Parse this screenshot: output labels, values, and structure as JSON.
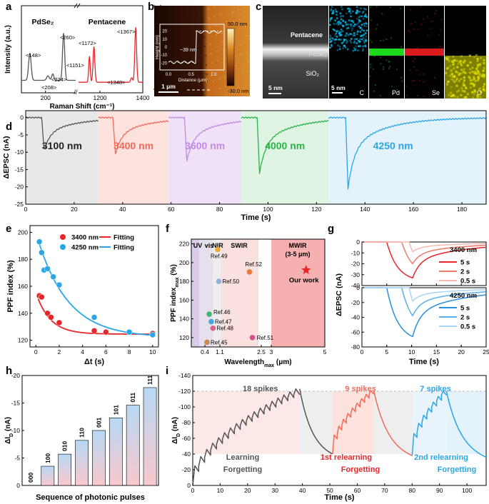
{
  "panels": {
    "a": {
      "letter": "a",
      "ylabel": "Intensity (a.u.)",
      "xlabel": "Raman Shift (cm⁻¹)",
      "xticks": [
        "200",
        "1200",
        "1400"
      ],
      "material_left": "PdSe₂",
      "material_right": "Pentacene",
      "peaks_left": [
        "<148>",
        "<208>",
        "<224>",
        "<260>"
      ],
      "peaks_right": [
        "<1151>",
        "<1172>",
        "<1348>",
        "<1367>"
      ],
      "axis_break": "//",
      "colors": {
        "left": "#555555",
        "right": "#e8262a"
      }
    },
    "b": {
      "letter": "b",
      "scale_bar": "1 μm",
      "colorbar_top": "50.0 nm",
      "colorbar_bottom": "-30.0 nm",
      "inset_ylabel": "Height (nm)",
      "inset_xlabel": "Distance (μm)",
      "inset_yticks": [
        "20",
        "10",
        "0",
        "-10",
        "-20"
      ],
      "inset_xticks": [
        "0.0",
        "0.5",
        "1.0"
      ],
      "inset_annotation": "~39 nm"
    },
    "c": {
      "letter": "c",
      "layer_labels": [
        "Pentacene",
        "PdSe₂",
        "SiO₂"
      ],
      "scale_bar_1": "5 nm",
      "scale_bar_2": "5 nm",
      "elements": [
        {
          "label": "C",
          "color": "#00c8ff"
        },
        {
          "label": "Pd",
          "color": "#22ff22"
        },
        {
          "label": "Se",
          "color": "#ff2020"
        },
        {
          "label": "O",
          "color": "#e6e600"
        }
      ]
    },
    "d": {
      "letter": "d",
      "ylabel": "ΔEPSC (nA)",
      "xlabel": "Time (s)",
      "chart_data": {
        "type": "line",
        "xlim": [
          0,
          190
        ],
        "ylim": [
          -25,
          2
        ],
        "xticks": [
          0,
          20,
          40,
          60,
          80,
          100,
          120,
          140,
          160,
          180
        ],
        "yticks": [
          0,
          -5,
          -10,
          -15,
          -20,
          -25
        ],
        "segments": [
          {
            "label": "3100 nm",
            "x0": 0,
            "x1": 30,
            "t_on": 6.6,
            "peak": -9.5,
            "color": "#555555",
            "bg": "#e8e8e8"
          },
          {
            "label": "3400 nm",
            "x0": 30,
            "x1": 59,
            "t_on": 36,
            "peak": -10.5,
            "color": "#f26a5a",
            "bg": "#fde2dd"
          },
          {
            "label": "3600 nm",
            "x0": 59,
            "x1": 89,
            "t_on": 65.5,
            "peak": -12.5,
            "color": "#c08ae0",
            "bg": "#efe2f8"
          },
          {
            "label": "4000 nm",
            "x0": 89,
            "x1": 125,
            "t_on": 95.5,
            "peak": -16,
            "color": "#2ab34a",
            "bg": "#e0f4e3"
          },
          {
            "label": "4250 nm",
            "x0": 125,
            "x1": 190,
            "t_on": 132,
            "peak": -20.5,
            "color": "#2aa6e8",
            "bg": "#e3f2fb"
          }
        ]
      }
    },
    "e": {
      "letter": "e",
      "ylabel": "PPF index (%)",
      "xlabel": "Δt (s)",
      "legend": [
        {
          "label": "3400 nm",
          "type": "marker",
          "color": "#e8262a"
        },
        {
          "label": "Fitting",
          "type": "line",
          "color": "#e8262a"
        },
        {
          "label": "4250 nm",
          "type": "marker",
          "color": "#2aa6e8"
        },
        {
          "label": "Fitting",
          "type": "line",
          "color": "#2aa6e8"
        }
      ],
      "chart_data": {
        "type": "scatter",
        "xlim": [
          -0.5,
          10.5
        ],
        "ylim": [
          115,
          205
        ],
        "xticks": [
          0,
          2,
          4,
          6,
          8,
          10
        ],
        "yticks": [
          120,
          140,
          160,
          180,
          200
        ],
        "series": [
          {
            "name": "3400 nm",
            "color": "#e8262a",
            "x": [
              0.3,
              0.5,
              1,
              1.3,
              2,
              5,
              6,
              8,
              10
            ],
            "y": [
              153,
              152,
              140,
              137,
              133,
              127,
              126,
              126,
              125
            ],
            "fit": {
              "a": 124.5,
              "b": 31,
              "tau": 1.2
            }
          },
          {
            "name": "4250 nm",
            "color": "#2aa6e8",
            "x": [
              0.3,
              0.5,
              0.7,
              1,
              1.5,
              2,
              5,
              8,
              10
            ],
            "y": [
              193,
              185,
              172,
              173,
              167,
              161,
              137,
              126,
              124
            ],
            "fit": {
              "a": 122,
              "b": 78,
              "tau": 2.6
            }
          }
        ]
      }
    },
    "f": {
      "letter": "f",
      "ylabel": "PPF index",
      "ylabel_sub": "max",
      "ylabel_unit": " (%)",
      "xlabel": "Wavelength",
      "xlabel_sub": "max",
      "xlabel_unit": " (μm)",
      "bands": [
        "UV",
        "vis",
        "NIR",
        "SWIR",
        "MWIR",
        "(3-5 μm)"
      ],
      "chart_data": {
        "type": "scatter",
        "xlim": [
          0.2,
          5
        ],
        "ylim": [
          110,
          225
        ],
        "xticks": [
          "0.4",
          "1.1",
          "2.5",
          "3",
          "5"
        ],
        "yticks": [
          120,
          140,
          160,
          180,
          200,
          220
        ],
        "points": [
          {
            "label": "Ref.49",
            "x": 1.0,
            "y": 214,
            "color": "#f0a020"
          },
          {
            "label": "Ref.52",
            "x": 2.1,
            "y": 190,
            "color": "#e8702a"
          },
          {
            "label": "Ref.50",
            "x": 1.05,
            "y": 180,
            "color": "#8aaad8"
          },
          {
            "label": "Our work",
            "x": 4.3,
            "y": 192,
            "color": "#e8262a"
          },
          {
            "label": "Ref.46",
            "x": 0.6,
            "y": 145,
            "color": "#30b060"
          },
          {
            "label": "Ref.47",
            "x": 0.7,
            "y": 137,
            "color": "#30a0e0"
          },
          {
            "label": "Ref.48",
            "x": 0.78,
            "y": 130,
            "color": "#e05080"
          },
          {
            "label": "Ref.51",
            "x": 2.2,
            "y": 120,
            "color": "#d04080"
          },
          {
            "label": "Ref.45",
            "x": 0.5,
            "y": 115,
            "color": "#c88040"
          }
        ]
      }
    },
    "g": {
      "letter": "g",
      "ylabel": "ΔEPSC (nA)",
      "xlabel": "Time (s)",
      "top_title": "3400 nm",
      "bottom_title": "4250 nm",
      "chart_data": {
        "type": "line",
        "xlim": [
          0,
          25
        ],
        "xticks": [
          0,
          5,
          10,
          15,
          20,
          25
        ],
        "top": {
          "ylim": [
            0,
            -40
          ],
          "yticks": [
            0,
            -10,
            -20,
            -30,
            -40
          ],
          "series": [
            {
              "name": "5 s",
              "t_on": 5,
              "peak": -33,
              "color": "#e8262a"
            },
            {
              "name": "2 s",
              "t_on": 8,
              "peak": -20,
              "color": "#f07a6a"
            },
            {
              "name": "0.5 s",
              "t_on": 9.5,
              "peak": -9,
              "color": "#f8b8b0"
            }
          ]
        },
        "bottom": {
          "ylim": [
            0,
            -80
          ],
          "yticks": [
            0,
            -20,
            -40,
            -60,
            -80
          ],
          "series": [
            {
              "name": "5 s",
              "t_on": 5,
              "peak": -66,
              "color": "#2a8ee0"
            },
            {
              "name": "2 s",
              "t_on": 8,
              "peak": -38,
              "color": "#5ab0ea"
            },
            {
              "name": "0.5 s",
              "t_on": 9.5,
              "peak": -18,
              "color": "#a8d6f4"
            }
          ]
        }
      }
    },
    "h": {
      "letter": "h",
      "ylabel": "ΔI",
      "ylabel_sub": "D",
      "ylabel_unit": " (nA)",
      "xlabel": "Sequence of photonic pulses",
      "chart_data": {
        "type": "bar",
        "categories": [
          "000",
          "100",
          "010",
          "110",
          "001",
          "101",
          "011",
          "111"
        ],
        "values": [
          0,
          -3.5,
          -5.7,
          -8.2,
          -10,
          -12.3,
          -14.6,
          -17.8
        ],
        "ylim": [
          0,
          -20
        ],
        "yticks": [
          0,
          -5,
          -10,
          -15,
          -20
        ]
      }
    },
    "i": {
      "letter": "i",
      "ylabel": "ΔI",
      "ylabel_sub": "D",
      "ylabel_unit": " (nA)",
      "xlabel": "Time (s)",
      "phase_labels": [
        {
          "text": "18 spikes",
          "color": "#555555"
        },
        {
          "text": "9 spikes",
          "color": "#f26a5a"
        },
        {
          "text": "7 spikes",
          "color": "#2aa6e8"
        },
        {
          "text": "Learning",
          "color": "#555555"
        },
        {
          "text": "Forgetting",
          "color": "#555555"
        },
        {
          "text": "1st relearning",
          "color": "#e8262a"
        },
        {
          "text": "Forgetting",
          "color": "#e8262a"
        },
        {
          "text": "2nd relearning",
          "color": "#2aa6e8"
        },
        {
          "text": "Forgetting",
          "color": "#2aa6e8"
        }
      ],
      "chart_data": {
        "type": "line",
        "xlim": [
          0,
          107
        ],
        "ylim": [
          0,
          -140
        ],
        "xticks": [
          0,
          10,
          20,
          30,
          40,
          50,
          60,
          70,
          80,
          90,
          100
        ],
        "yticks": [
          0,
          -20,
          -40,
          -60,
          -80,
          -100,
          -120,
          -140
        ],
        "threshold": -120,
        "phases": [
          {
            "name": "learning",
            "t0": 0,
            "t1": 39,
            "spikes": 18,
            "start": 0,
            "end": -123,
            "color": "#555555"
          },
          {
            "name": "forgetting",
            "t0": 39,
            "t1": 51,
            "start": -123,
            "end": -40,
            "color": "#555555"
          },
          {
            "name": "1st relearning",
            "t0": 51,
            "t1": 66,
            "spikes": 9,
            "start": -40,
            "end": -121,
            "color": "#f26a5a"
          },
          {
            "name": "forgetting",
            "t0": 66,
            "t1": 80,
            "start": -121,
            "end": -38,
            "color": "#f26a5a"
          },
          {
            "name": "2nd relearning",
            "t0": 80,
            "t1": 92.5,
            "spikes": 7,
            "start": -38,
            "end": -120,
            "color": "#2aa6e8"
          },
          {
            "name": "forgetting",
            "t0": 92.5,
            "t1": 107,
            "start": -120,
            "end": -36,
            "color": "#2aa6e8"
          }
        ]
      }
    }
  }
}
